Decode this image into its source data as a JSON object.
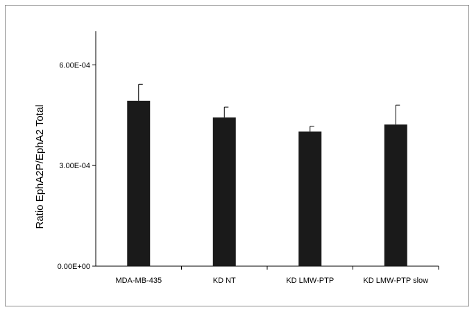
{
  "chart_data": {
    "type": "bar",
    "title": "",
    "xlabel": "",
    "ylabel": "Ratio EphA2P/EphA2 Total",
    "categories": [
      "MDA-MB-435",
      "KD NT",
      "KD LMW-PTP",
      "KD LMW-PTP slow"
    ],
    "values": [
      0.000493,
      0.000443,
      0.000401,
      0.000422
    ],
    "errors": [
      4.9e-05,
      3.1e-05,
      1.6e-05,
      5.8e-05
    ],
    "ylim": [
      0,
      0.0007
    ],
    "yticks": [
      0,
      0.0003,
      0.0006
    ],
    "ytick_labels": [
      "0.00E+00",
      "3.00E-04",
      "6.00E-04"
    ],
    "grid": false,
    "legend": "none",
    "bar_color": "#1a1a1a"
  }
}
